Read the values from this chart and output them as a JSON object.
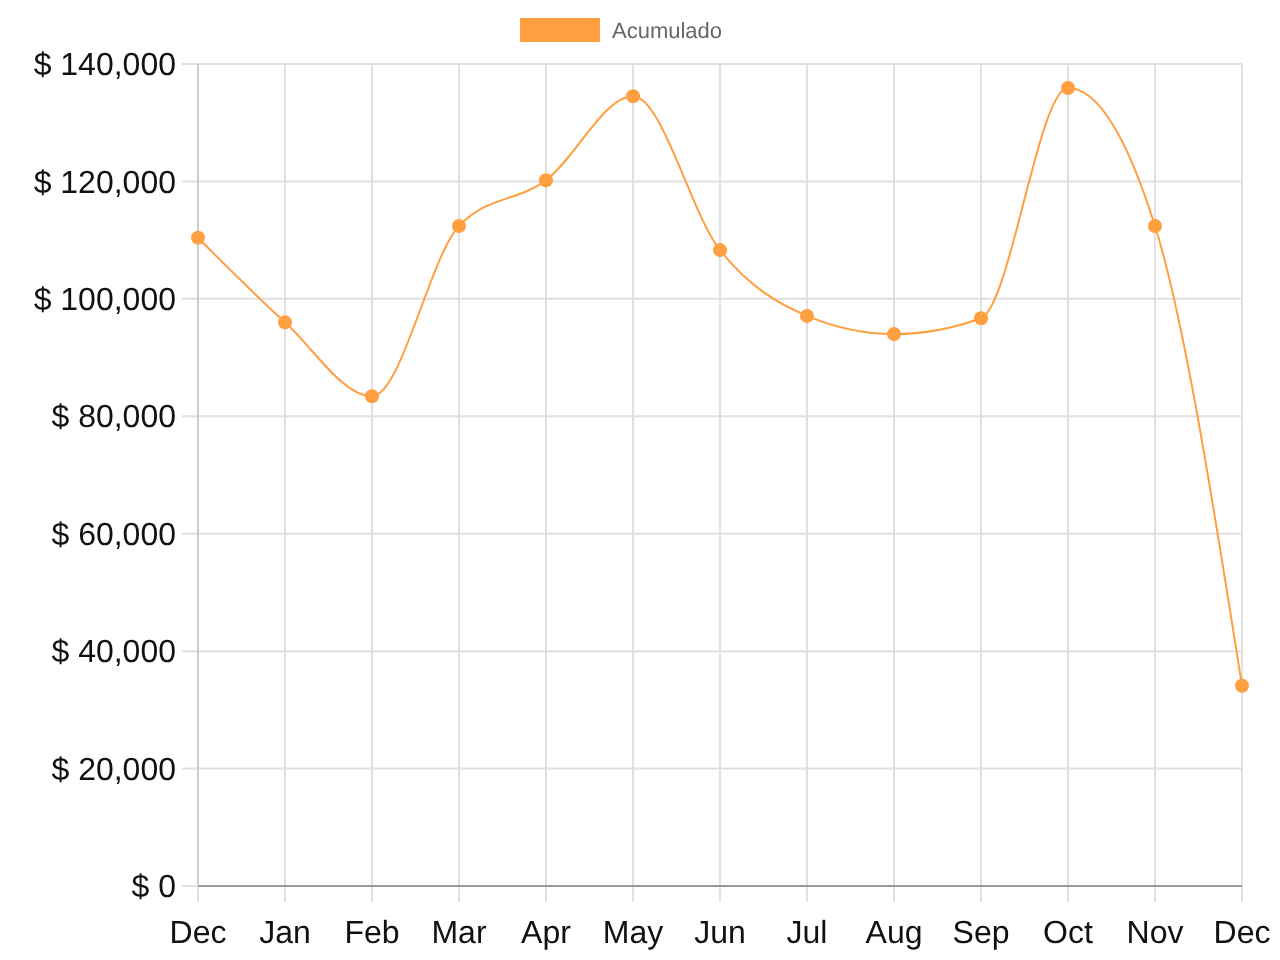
{
  "chart_data": {
    "type": "line",
    "categories": [
      "Dec",
      "Jan",
      "Feb",
      "Mar",
      "Apr",
      "May",
      "Jun",
      "Jul",
      "Aug",
      "Sep",
      "Oct",
      "Nov",
      "Dec"
    ],
    "series": [
      {
        "name": "Acumulado",
        "color": "#ff9f40",
        "values": [
          110400,
          96000,
          83400,
          112400,
          120200,
          134500,
          108300,
          97100,
          94000,
          96700,
          135900,
          112400,
          34100
        ]
      }
    ],
    "ylim": [
      0,
      140000
    ],
    "yticks": [
      {
        "value": 0,
        "label": "$ 0"
      },
      {
        "value": 20000,
        "label": "$ 20,000"
      },
      {
        "value": 40000,
        "label": "$ 40,000"
      },
      {
        "value": 60000,
        "label": "$ 60,000"
      },
      {
        "value": 80000,
        "label": "$ 80,000"
      },
      {
        "value": 100000,
        "label": "$ 100,000"
      },
      {
        "value": 120000,
        "label": "$ 120,000"
      },
      {
        "value": 140000,
        "label": "$ 140,000"
      }
    ],
    "grid": true,
    "legend": "top",
    "marker": "circle",
    "line_style": "solid"
  }
}
